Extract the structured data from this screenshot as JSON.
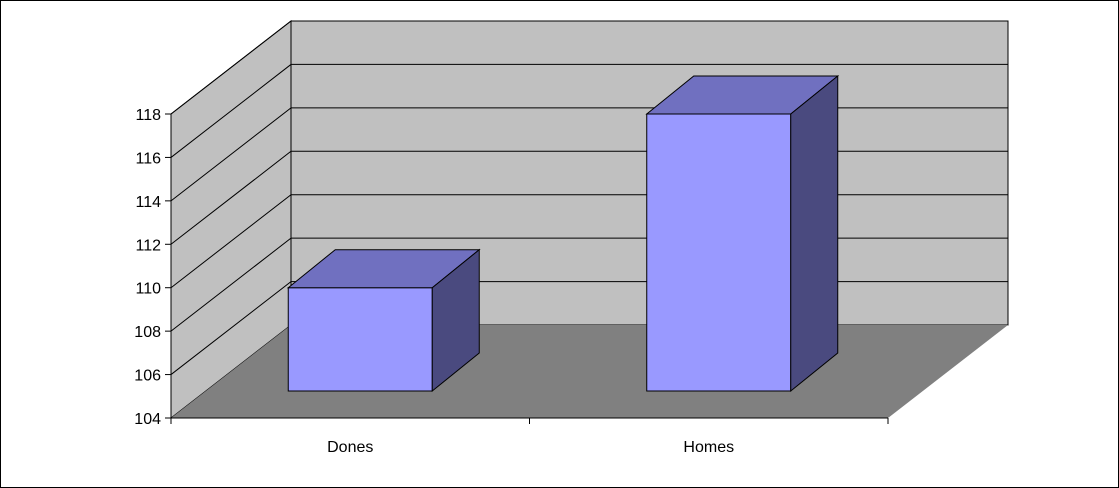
{
  "chart_data": {
    "type": "bar",
    "style": "3d-clustered-column",
    "categories": [
      "Dones",
      "Homes"
    ],
    "values": [
      110,
      118
    ],
    "ylim": [
      104,
      118
    ],
    "yticks": [
      "104",
      "106",
      "108",
      "110",
      "112",
      "114",
      "116",
      "118"
    ],
    "grid": true,
    "legend": "none",
    "colors": {
      "bar_front": "#9999ff",
      "bar_top": "#7070c0",
      "bar_side": "#4a4a7f",
      "back_wall": "#c0c0c0",
      "side_wall": "#c0c0c0",
      "floor": "#808080",
      "gridline": "#000000"
    }
  }
}
